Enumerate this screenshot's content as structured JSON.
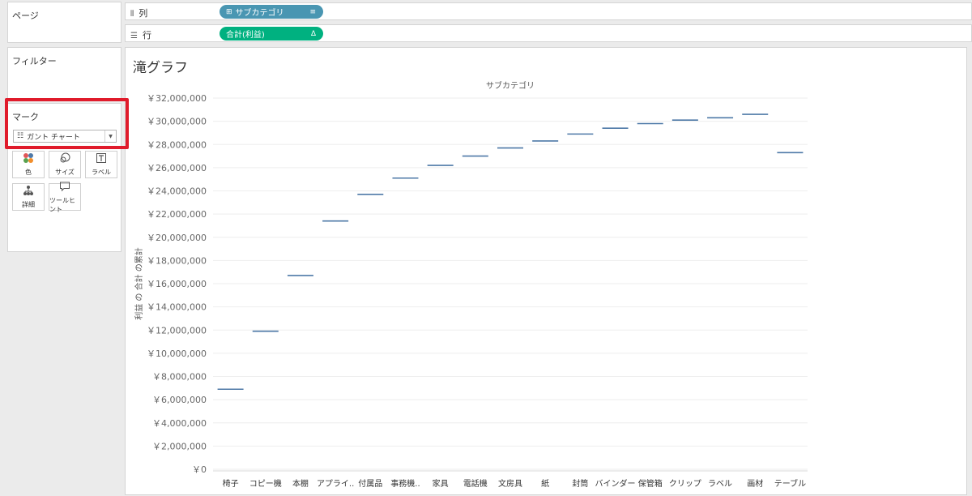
{
  "left_panel": {
    "pages_title": "ページ",
    "filters_title": "フィルター",
    "marks_title": "マーク",
    "mark_type": "ガント チャート",
    "mark_buttons": [
      {
        "label": "色",
        "icon": "color-icon"
      },
      {
        "label": "サイズ",
        "icon": "size-icon"
      },
      {
        "label": "ラベル",
        "icon": "label-icon"
      },
      {
        "label": "詳細",
        "icon": "detail-icon"
      },
      {
        "label": "ツールヒント",
        "icon": "tooltip-icon"
      }
    ]
  },
  "shelves": {
    "columns_label": "列",
    "rows_label": "行",
    "columns_pill": "サブカテゴリ",
    "rows_pill": "合計(利益)",
    "columns_pill_color": "#4996b2",
    "rows_pill_color": "#00b180"
  },
  "view": {
    "title": "滝グラフ"
  },
  "highlight_color": "#e01b2b",
  "chart_data": {
    "type": "gantt",
    "title": "",
    "header": "サブカテゴリ",
    "ylabel": "利益 の 合計 の累計",
    "ylim": [
      0,
      32000000
    ],
    "y_ticks": [
      0,
      2000000,
      4000000,
      6000000,
      8000000,
      10000000,
      12000000,
      14000000,
      16000000,
      18000000,
      20000000,
      22000000,
      24000000,
      26000000,
      28000000,
      30000000,
      32000000
    ],
    "y_tick_labels": [
      "￥0",
      "￥2,000,000",
      "￥4,000,000",
      "￥6,000,000",
      "￥8,000,000",
      "￥10,000,000",
      "￥12,000,000",
      "￥14,000,000",
      "￥16,000,000",
      "￥18,000,000",
      "￥20,000,000",
      "￥22,000,000",
      "￥24,000,000",
      "￥26,000,000",
      "￥28,000,000",
      "￥30,000,000",
      "￥32,000,000"
    ],
    "categories": [
      "椅子",
      "コピー機",
      "本棚",
      "アプライ..",
      "付属品",
      "事務機..",
      "家具",
      "電話機",
      "文房具",
      "紙",
      "封筒",
      "バインダー",
      "保管箱",
      "クリップ",
      "ラベル",
      "画材",
      "テーブル"
    ],
    "values": [
      6900000,
      11900000,
      16700000,
      21400000,
      23700000,
      25100000,
      26200000,
      27000000,
      27700000,
      28300000,
      28900000,
      29400000,
      29800000,
      30100000,
      30300000,
      30600000,
      27300000
    ],
    "mark_color": "#4e79a7",
    "grid": true
  }
}
